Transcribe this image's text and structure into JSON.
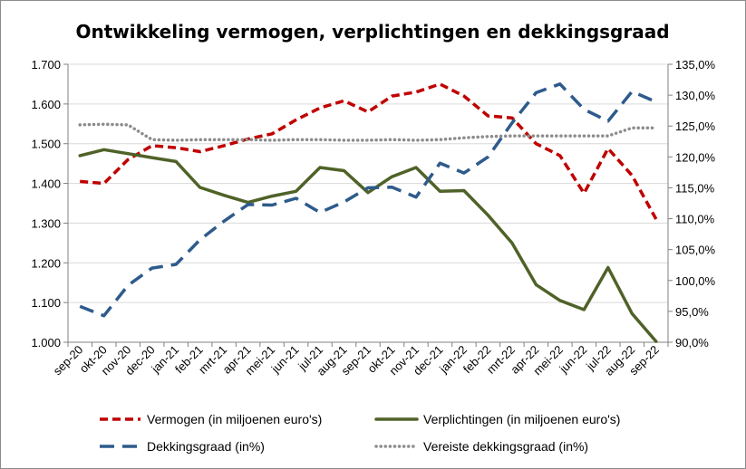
{
  "chart_data": {
    "type": "line",
    "title": "Ontwikkeling vermogen, verplichtingen en dekkingsgraad",
    "categories": [
      "sep-20",
      "okt-20",
      "nov-20",
      "dec-20",
      "jan-21",
      "feb-21",
      "mrt-21",
      "apr-21",
      "mei-21",
      "jun-21",
      "jul-21",
      "aug-21",
      "sep-21",
      "okt-21",
      "nov-21",
      "dec-21",
      "jan-22",
      "feb-22",
      "mrt-22",
      "apr-22",
      "mei-22",
      "jun-22",
      "jul-22",
      "aug-22",
      "sep-22"
    ],
    "y_left": {
      "ylim": [
        1000,
        1700
      ],
      "ticks": [
        "1.000",
        "1.100",
        "1.200",
        "1.300",
        "1.400",
        "1.500",
        "1.600",
        "1.700"
      ]
    },
    "y_right": {
      "ylim": [
        90,
        135
      ],
      "ticks": [
        "90,0%",
        "95,0%",
        "100,0%",
        "105,0%",
        "110,0%",
        "115,0%",
        "120,0%",
        "125,0%",
        "130,0%",
        "135,0%"
      ]
    },
    "series": [
      {
        "name": "Vermogen (in miljoenen euro's)",
        "axis": "left",
        "color": "#c00000",
        "style": "dashed",
        "values": [
          1405,
          1400,
          1460,
          1495,
          1490,
          1480,
          1495,
          1512,
          1525,
          1560,
          1590,
          1608,
          1580,
          1620,
          1630,
          1650,
          1620,
          1570,
          1565,
          1500,
          1470,
          1375,
          1488,
          1420,
          1310
        ]
      },
      {
        "name": "Verplichtingen (in miljoenen euro's)",
        "axis": "left",
        "color": "#4f6228",
        "style": "solid",
        "values": [
          1470,
          1485,
          1475,
          1465,
          1455,
          1390,
          1370,
          1352,
          1368,
          1380,
          1440,
          1432,
          1377,
          1417,
          1440,
          1380,
          1382,
          1320,
          1250,
          1145,
          1105,
          1082,
          1188,
          1072,
          1002
        ]
      },
      {
        "name": "Dekkingsgraad (in%)",
        "axis": "right",
        "color": "#2e5b8c",
        "style": "longdash",
        "values": [
          95.8,
          94.3,
          99.2,
          102.0,
          102.6,
          106.6,
          109.6,
          112.3,
          112.2,
          113.3,
          111.0,
          112.7,
          115.0,
          115.1,
          113.5,
          119.0,
          117.4,
          120.0,
          125.5,
          130.4,
          131.8,
          127.7,
          125.8,
          130.6,
          128.9
        ]
      },
      {
        "name": "Vereiste dekkingsgraad (in%)",
        "axis": "right",
        "color": "#8c8c8c",
        "style": "dotted",
        "values": [
          125.2,
          125.3,
          125.2,
          122.8,
          122.7,
          122.8,
          122.8,
          122.8,
          122.7,
          122.8,
          122.8,
          122.7,
          122.7,
          122.8,
          122.7,
          122.8,
          123.1,
          123.3,
          123.4,
          123.4,
          123.4,
          123.4,
          123.4,
          124.7,
          124.7
        ]
      }
    ],
    "grid": "horizontal",
    "legend_position": "bottom"
  }
}
